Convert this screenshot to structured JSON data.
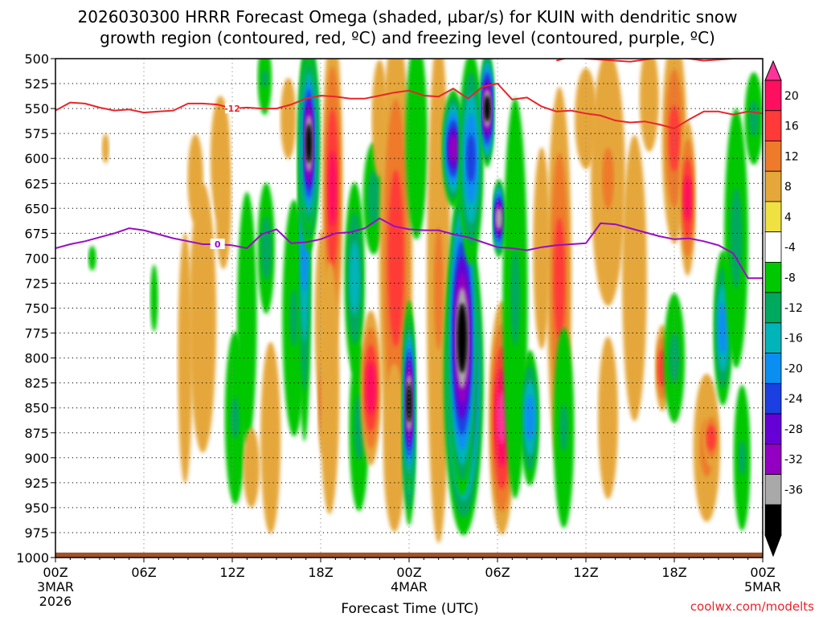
{
  "chart_data": {
    "type": "heatmap",
    "title_line1": "2026030300 HRRR Forecast Omega (shaded, µbar/s) for KUIN with dendritic snow",
    "title_line2": "growth region (contoured, red, ºC) and freezing level (contoured, purple, ºC)",
    "xlabel": "Forecast Time (UTC)",
    "credit": "coolwx.com/modelts",
    "y_axis": {
      "unit": "hPa",
      "range": [
        1000,
        500
      ],
      "ticks": [
        500,
        525,
        550,
        575,
        600,
        625,
        650,
        675,
        700,
        725,
        750,
        775,
        800,
        825,
        850,
        875,
        900,
        925,
        950,
        975,
        1000
      ]
    },
    "x_axis": {
      "unit": "forecast hour",
      "range": [
        0,
        48
      ],
      "ticks": [
        {
          "hour": 0,
          "label": "00Z",
          "sub1": "3MAR",
          "sub2": "2026"
        },
        {
          "hour": 6,
          "label": "06Z",
          "sub1": "",
          "sub2": ""
        },
        {
          "hour": 12,
          "label": "12Z",
          "sub1": "",
          "sub2": ""
        },
        {
          "hour": 18,
          "label": "18Z",
          "sub1": "",
          "sub2": ""
        },
        {
          "hour": 24,
          "label": "00Z",
          "sub1": "4MAR",
          "sub2": ""
        },
        {
          "hour": 30,
          "label": "06Z",
          "sub1": "",
          "sub2": ""
        },
        {
          "hour": 36,
          "label": "12Z",
          "sub1": "",
          "sub2": ""
        },
        {
          "hour": 42,
          "label": "18Z",
          "sub1": "",
          "sub2": ""
        },
        {
          "hour": 48,
          "label": "00Z",
          "sub1": "5MAR",
          "sub2": ""
        }
      ]
    },
    "colorbar": {
      "levels": [
        "20",
        "16",
        "12",
        "8",
        "4",
        "-4",
        "-8",
        "-12",
        "-16",
        "-20",
        "-24",
        "-28",
        "-32",
        "-36"
      ],
      "colors": [
        "#ff0f5f",
        "#ff3a38",
        "#ee7a2c",
        "#e5a73a",
        "#f0e143",
        "#ffffff",
        "#00c800",
        "#00a95e",
        "#00b4b9",
        "#0a8ef2",
        "#1b3fe0",
        "#6500d6",
        "#9300c1",
        "#a9a9a9",
        "#000000"
      ],
      "top_color": "#ff3399",
      "bottom_color": "#000000"
    },
    "omega_cells": [
      {
        "t": 2.5,
        "p": 700,
        "dt": 0.12,
        "dp": 14,
        "v": -7
      },
      {
        "t": 3.4,
        "p": 590,
        "dt": 0.12,
        "dp": 20,
        "v": 5
      },
      {
        "t": 6.7,
        "p": 740,
        "dt": 0.12,
        "dp": 40,
        "v": -6
      },
      {
        "t": 8.8,
        "p": 800,
        "dt": 0.45,
        "dp": 170,
        "v": 5
      },
      {
        "t": 9.5,
        "p": 620,
        "dt": 0.5,
        "dp": 60,
        "v": 5
      },
      {
        "t": 10.0,
        "p": 760,
        "dt": 0.9,
        "dp": 160,
        "v": 6
      },
      {
        "t": 11.2,
        "p": 600,
        "dt": 0.7,
        "dp": 85,
        "v": 5
      },
      {
        "t": 11.4,
        "p": 650,
        "dt": 0.6,
        "dp": 100,
        "v": 4.5
      },
      {
        "t": 12.2,
        "p": 860,
        "dt": 0.6,
        "dp": 95,
        "v": -8
      },
      {
        "t": 13.0,
        "p": 760,
        "dt": 0.6,
        "dp": 150,
        "v": -6
      },
      {
        "t": 13.3,
        "p": 910,
        "dt": 0.45,
        "dp": 45,
        "v": 7
      },
      {
        "t": 14.3,
        "p": 690,
        "dt": 0.45,
        "dp": 70,
        "v": -10
      },
      {
        "t": 14.2,
        "p": 520,
        "dt": 0.35,
        "dp": 40,
        "v": -8
      },
      {
        "t": 14.6,
        "p": 880,
        "dt": 0.7,
        "dp": 130,
        "v": 5
      },
      {
        "t": 15.8,
        "p": 560,
        "dt": 0.5,
        "dp": 55,
        "v": 5
      },
      {
        "t": 16.2,
        "p": 760,
        "dt": 0.7,
        "dp": 130,
        "v": -8
      },
      {
        "t": 16.9,
        "p": 690,
        "dt": 0.32,
        "dp": 200,
        "v": -16
      },
      {
        "t": 17.2,
        "p": 585,
        "dt": 0.6,
        "dp": 110,
        "v": -28
      },
      {
        "t": 17.2,
        "p": 585,
        "dt": 0.3,
        "dp": 90,
        "v": -36
      },
      {
        "t": 18.1,
        "p": 760,
        "dt": 0.45,
        "dp": 120,
        "v": 5
      },
      {
        "t": 18.2,
        "p": 840,
        "dt": 0.25,
        "dp": 60,
        "v": 14
      },
      {
        "t": 18.8,
        "p": 630,
        "dt": 0.55,
        "dp": 170,
        "v": 16
      },
      {
        "t": 18.6,
        "p": 830,
        "dt": 0.6,
        "dp": 150,
        "v": 6
      },
      {
        "t": 20.3,
        "p": 720,
        "dt": 0.55,
        "dp": 100,
        "v": -14
      },
      {
        "t": 20.6,
        "p": 870,
        "dt": 0.55,
        "dp": 90,
        "v": -9
      },
      {
        "t": 21.4,
        "p": 830,
        "dt": 0.55,
        "dp": 80,
        "v": 18
      },
      {
        "t": 21.6,
        "p": 640,
        "dt": 0.6,
        "dp": 60,
        "v": -10
      },
      {
        "t": 22.0,
        "p": 560,
        "dt": 0.5,
        "dp": 80,
        "v": 5
      },
      {
        "t": 23.1,
        "p": 700,
        "dt": 1.0,
        "dp": 240,
        "v": 14
      },
      {
        "t": 23.0,
        "p": 890,
        "dt": 0.7,
        "dp": 100,
        "v": 6
      },
      {
        "t": 24.5,
        "p": 580,
        "dt": 0.7,
        "dp": 120,
        "v": -6
      },
      {
        "t": 24.0,
        "p": 855,
        "dt": 0.32,
        "dp": 115,
        "v": -26
      },
      {
        "t": 24.0,
        "p": 845,
        "dt": 0.2,
        "dp": 90,
        "v": -36
      },
      {
        "t": 26.0,
        "p": 730,
        "dt": 0.7,
        "dp": 280,
        "v": 8
      },
      {
        "t": 27.7,
        "p": 820,
        "dt": 1.2,
        "dp": 160,
        "v": -32
      },
      {
        "t": 27.6,
        "p": 780,
        "dt": 0.85,
        "dp": 160,
        "v": -36
      },
      {
        "t": 27.0,
        "p": 590,
        "dt": 0.6,
        "dp": 60,
        "v": -28
      },
      {
        "t": 28.2,
        "p": 600,
        "dt": 0.7,
        "dp": 110,
        "v": -20
      },
      {
        "t": 29.3,
        "p": 550,
        "dt": 0.32,
        "dp": 60,
        "v": -36
      },
      {
        "t": 30.3,
        "p": 860,
        "dt": 0.75,
        "dp": 120,
        "v": 20
      },
      {
        "t": 30.1,
        "p": 660,
        "dt": 0.25,
        "dp": 40,
        "v": -34
      },
      {
        "t": 31.2,
        "p": 740,
        "dt": 0.75,
        "dp": 220,
        "v": -8
      },
      {
        "t": 32.2,
        "p": 860,
        "dt": 0.5,
        "dp": 70,
        "v": -18
      },
      {
        "t": 33.0,
        "p": 690,
        "dt": 0.5,
        "dp": 120,
        "v": 6
      },
      {
        "t": 34.2,
        "p": 720,
        "dt": 0.7,
        "dp": 200,
        "v": 13
      },
      {
        "t": 34.5,
        "p": 870,
        "dt": 0.6,
        "dp": 110,
        "v": -8
      },
      {
        "t": 36.0,
        "p": 560,
        "dt": 0.7,
        "dp": 60,
        "v": 6
      },
      {
        "t": 37.5,
        "p": 620,
        "dt": 1.1,
        "dp": 140,
        "v": 8
      },
      {
        "t": 37.5,
        "p": 860,
        "dt": 0.7,
        "dp": 110,
        "v": 5
      },
      {
        "t": 39.3,
        "p": 720,
        "dt": 0.8,
        "dp": 170,
        "v": 6
      },
      {
        "t": 40.3,
        "p": 540,
        "dt": 0.55,
        "dp": 60,
        "v": 7
      },
      {
        "t": 41.2,
        "p": 810,
        "dt": 0.35,
        "dp": 45,
        "v": 15
      },
      {
        "t": 42.0,
        "p": 580,
        "dt": 0.7,
        "dp": 110,
        "v": 13
      },
      {
        "t": 42.9,
        "p": 640,
        "dt": 0.4,
        "dp": 80,
        "v": 17
      },
      {
        "t": 42.0,
        "p": 800,
        "dt": 0.6,
        "dp": 70,
        "v": -9
      },
      {
        "t": 44.2,
        "p": 890,
        "dt": 0.8,
        "dp": 80,
        "v": 9
      },
      {
        "t": 44.5,
        "p": 880,
        "dt": 0.35,
        "dp": 30,
        "v": 15
      },
      {
        "t": 45.3,
        "p": 770,
        "dt": 0.5,
        "dp": 80,
        "v": -18
      },
      {
        "t": 46.2,
        "p": 680,
        "dt": 0.7,
        "dp": 140,
        "v": -9
      },
      {
        "t": 46.6,
        "p": 900,
        "dt": 0.45,
        "dp": 80,
        "v": -8
      },
      {
        "t": 47.4,
        "p": 560,
        "dt": 0.5,
        "dp": 50,
        "v": -9
      }
    ],
    "dgz_contours": [
      {
        "label": "-12",
        "label_at": [
          12,
          550
        ],
        "points": [
          [
            0,
            552
          ],
          [
            1,
            544
          ],
          [
            2,
            545
          ],
          [
            3,
            549
          ],
          [
            4,
            552
          ],
          [
            5,
            551
          ],
          [
            6,
            554
          ],
          [
            7,
            553
          ],
          [
            8,
            552
          ],
          [
            9,
            545
          ],
          [
            10,
            545
          ],
          [
            11,
            546
          ],
          [
            12,
            550
          ],
          [
            13,
            549
          ],
          [
            14,
            550
          ],
          [
            15,
            550
          ],
          [
            16,
            546
          ],
          [
            17,
            540
          ],
          [
            18,
            537
          ],
          [
            19,
            538
          ],
          [
            20,
            540
          ],
          [
            21,
            540
          ],
          [
            22,
            537
          ],
          [
            23,
            534
          ],
          [
            24,
            532
          ],
          [
            25,
            537
          ],
          [
            26,
            538
          ],
          [
            27,
            530
          ],
          [
            28,
            540
          ],
          [
            29,
            528
          ],
          [
            30,
            525
          ],
          [
            31,
            541
          ],
          [
            32,
            539
          ],
          [
            33,
            548
          ],
          [
            34,
            553
          ],
          [
            35,
            552
          ],
          [
            36,
            555
          ],
          [
            37,
            557
          ],
          [
            38,
            562
          ],
          [
            39,
            564
          ],
          [
            40,
            563
          ],
          [
            41,
            566
          ],
          [
            42,
            570
          ],
          [
            43,
            561
          ],
          [
            44,
            553
          ],
          [
            45,
            553
          ],
          [
            46,
            556
          ],
          [
            47,
            553
          ],
          [
            48,
            555
          ]
        ]
      },
      {
        "label": "",
        "label_at": null,
        "points": [
          [
            34,
            502
          ],
          [
            35,
            498
          ],
          [
            36,
            500
          ],
          [
            37,
            501
          ],
          [
            38,
            502
          ],
          [
            39,
            503
          ],
          [
            40,
            501
          ],
          [
            41,
            499
          ],
          [
            42,
            499
          ],
          [
            43,
            500
          ],
          [
            44,
            502
          ],
          [
            45,
            501
          ],
          [
            46,
            500
          ],
          [
            47,
            500
          ],
          [
            48,
            500
          ]
        ]
      }
    ],
    "freezing_contours": [
      {
        "label": "0",
        "label_at": [
          11,
          686
        ],
        "points": [
          [
            0,
            690
          ],
          [
            1,
            686
          ],
          [
            2,
            683
          ],
          [
            3,
            679
          ],
          [
            4,
            675
          ],
          [
            5,
            670
          ],
          [
            6,
            672
          ],
          [
            7,
            676
          ],
          [
            8,
            680
          ],
          [
            9,
            683
          ],
          [
            10,
            686
          ],
          [
            11,
            686
          ],
          [
            12,
            687
          ],
          [
            13,
            690
          ],
          [
            14,
            676
          ],
          [
            15,
            671
          ],
          [
            16,
            685
          ],
          [
            17,
            684
          ],
          [
            18,
            681
          ],
          [
            19,
            675
          ],
          [
            20,
            674
          ],
          [
            21,
            670
          ],
          [
            22,
            660
          ],
          [
            23,
            668
          ],
          [
            24,
            671
          ],
          [
            25,
            672
          ],
          [
            26,
            672
          ],
          [
            27,
            676
          ],
          [
            28,
            679
          ],
          [
            29,
            684
          ],
          [
            30,
            689
          ],
          [
            31,
            690
          ],
          [
            32,
            692
          ],
          [
            33,
            689
          ],
          [
            34,
            687
          ],
          [
            35,
            686
          ],
          [
            36,
            685
          ],
          [
            37,
            665
          ],
          [
            38,
            666
          ],
          [
            39,
            670
          ],
          [
            40,
            674
          ],
          [
            41,
            678
          ],
          [
            42,
            681
          ],
          [
            43,
            680
          ],
          [
            44,
            683
          ],
          [
            45,
            687
          ],
          [
            46,
            695
          ],
          [
            47,
            720
          ],
          [
            48,
            720
          ]
        ]
      }
    ]
  }
}
